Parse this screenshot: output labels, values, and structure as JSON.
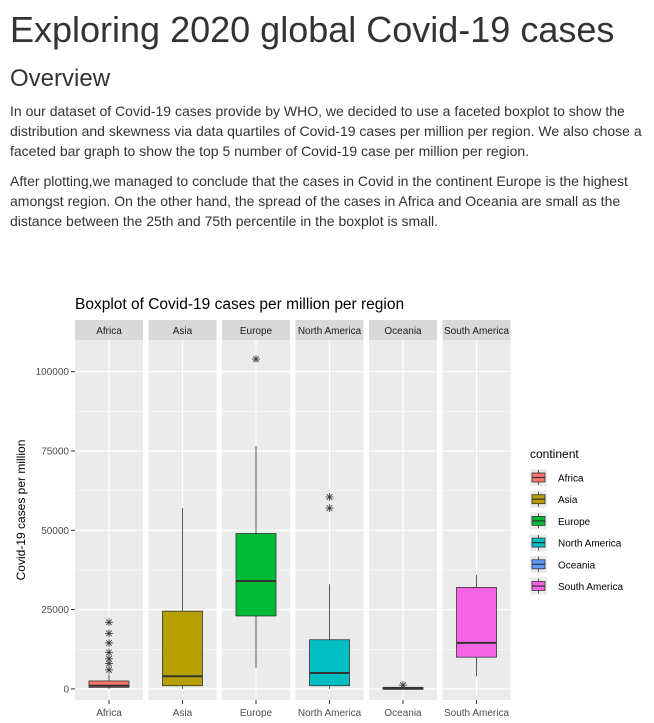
{
  "page": {
    "title": "Exploring 2020 global Covid-19 cases",
    "overview_heading": "Overview",
    "paragraph1": "In our dataset of Covid-19 cases provide by WHO, we decided to use a faceted boxplot to show the distribution and skewness via data quartiles of Covid-19 cases per million per region. We also chose a faceted bar graph to show the top 5 number of Covid-19 case per million per region.",
    "paragraph2": "After plotting,we managed to conclude that the cases in Covid in the continent Europe is the highest amongst region. On the other hand, the spread of the cases in Africa and Oceania are small as the distance between the 25th and 75th percentile in the boxplot is small."
  },
  "colors": {
    "Africa": "#F8766D",
    "Asia": "#B79F00",
    "Europe": "#00BA38",
    "North America": "#00BFC4",
    "Oceania": "#619CFF",
    "South America": "#F564E3",
    "panel_bg": "#EBEBEB",
    "strip_bg": "#D9D9D9",
    "grid": "#FFFFFF"
  },
  "chart_data": {
    "type": "boxplot",
    "title": "Boxplot of Covid-19 cases per million per region",
    "ylabel": "Covid-19 cases per million",
    "xlabel": "",
    "ylim": [
      -3500,
      110000
    ],
    "yticks": [
      0,
      25000,
      50000,
      75000,
      100000
    ],
    "ytick_labels": [
      "0",
      "25000",
      "50000",
      "75000",
      "100000"
    ],
    "grid": true,
    "legend_title": "continent",
    "legend_position": "right",
    "facets": [
      "Africa",
      "Asia",
      "Europe",
      "North America",
      "Oceania",
      "South America"
    ],
    "boxes": [
      {
        "category": "Africa",
        "whisker_low": 0,
        "q1": 500,
        "median": 1000,
        "q3": 2500,
        "whisker_high": 4500,
        "outliers": [
          6000,
          8000,
          9500,
          11500,
          14500,
          17500,
          21000
        ]
      },
      {
        "category": "Asia",
        "whisker_low": 0,
        "q1": 1000,
        "median": 4000,
        "q3": 24500,
        "whisker_high": 57000,
        "outliers": []
      },
      {
        "category": "Europe",
        "whisker_low": 6500,
        "q1": 23000,
        "median": 34000,
        "q3": 49000,
        "whisker_high": 76500,
        "outliers": [
          104000
        ]
      },
      {
        "category": "North America",
        "whisker_low": 0,
        "q1": 1000,
        "median": 5000,
        "q3": 15500,
        "whisker_high": 33000,
        "outliers": [
          57000,
          60500
        ]
      },
      {
        "category": "Oceania",
        "whisker_low": 0,
        "q1": 0,
        "median": 200,
        "q3": 500,
        "whisker_high": 700,
        "outliers": [
          1200
        ]
      },
      {
        "category": "South America",
        "whisker_low": 4000,
        "q1": 10000,
        "median": 14500,
        "q3": 32000,
        "whisker_high": 36000,
        "outliers": []
      }
    ]
  }
}
